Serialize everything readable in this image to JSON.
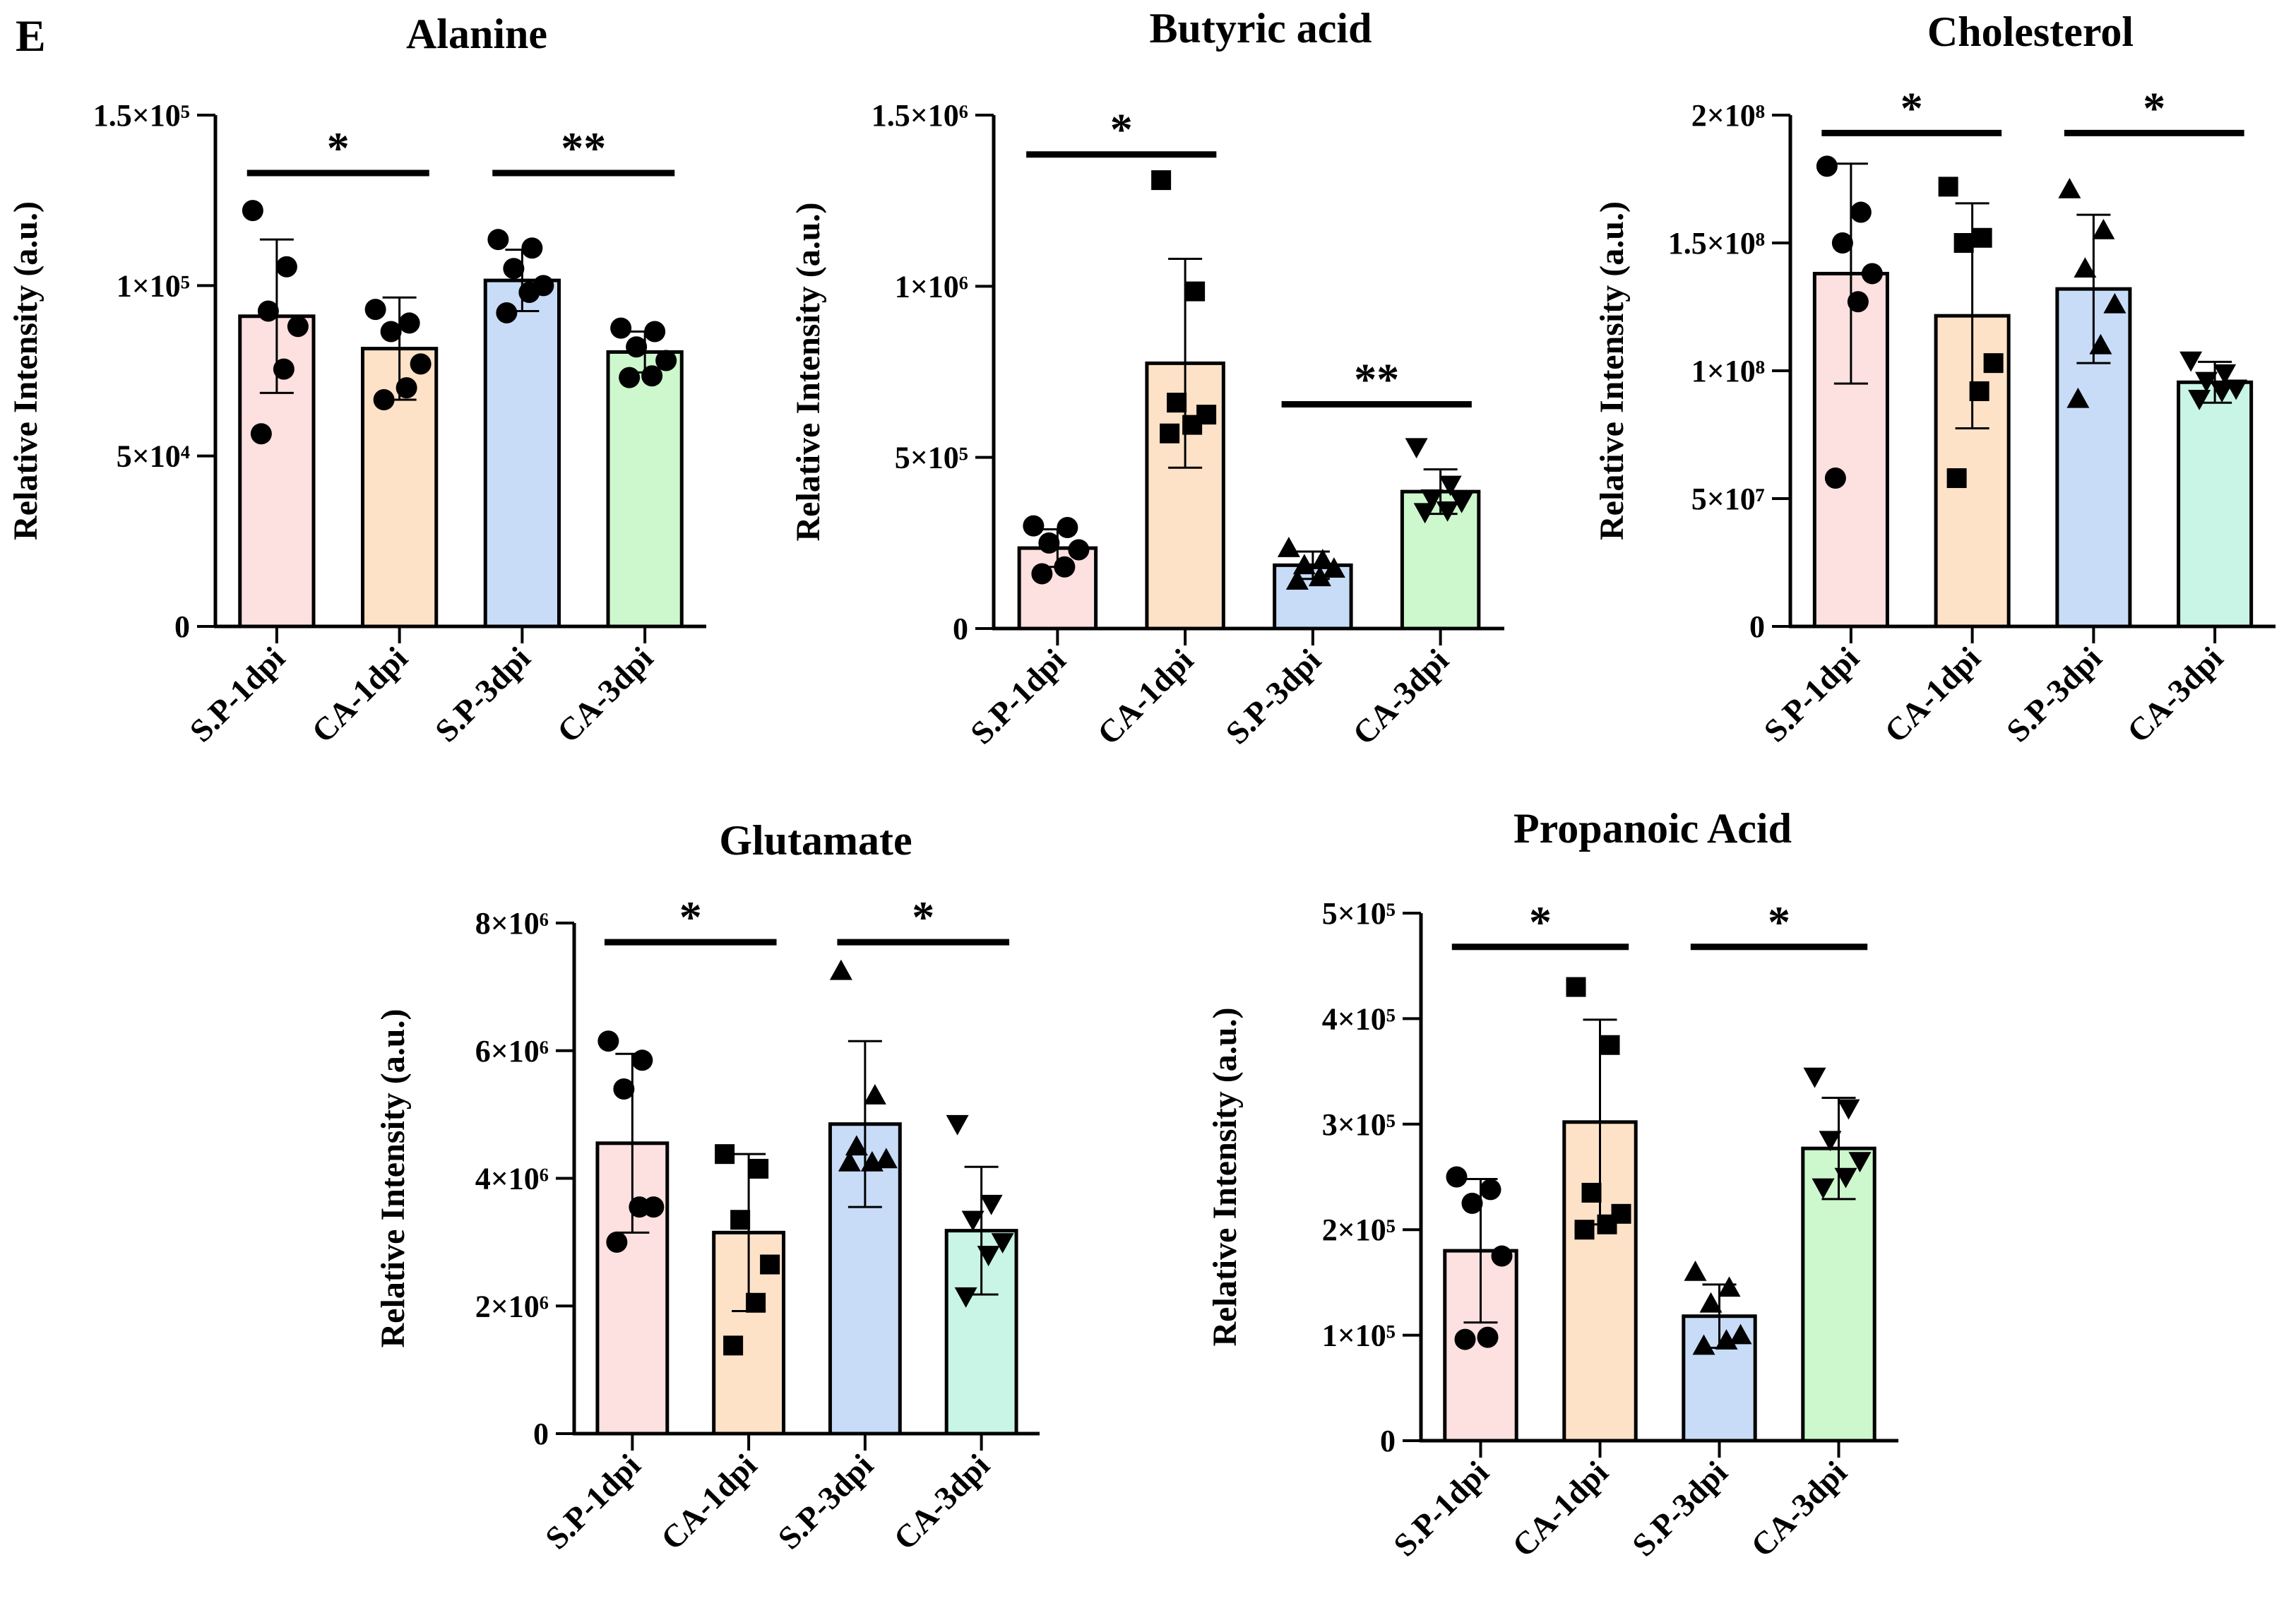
{
  "figure": {
    "panel_label": "E"
  },
  "chart_data": [
    {
      "type": "bar",
      "title": "Alanine",
      "ylabel": "Relative Intensity  (a.u.)",
      "categories": [
        "S.P-1dpi",
        "CA-1dpi",
        "S.P-3dpi",
        "CA-3dpi"
      ],
      "ylim": [
        0,
        150000
      ],
      "yticks": [
        0,
        50000,
        100000,
        150000
      ],
      "ytick_labels": [
        "0",
        "5×10⁴",
        "1×10⁵",
        "1.5×10⁵"
      ],
      "values": [
        91000,
        81500,
        101500,
        80500
      ],
      "errors": [
        22500,
        15000,
        9000,
        6000
      ],
      "points": [
        [
          122000,
          105500,
          92500,
          88000,
          75500,
          56500
        ],
        [
          93000,
          89000,
          86500,
          77000,
          70000,
          66500
        ],
        [
          113500,
          111000,
          105000,
          100000,
          98000,
          92000
        ],
        [
          87500,
          86500,
          82000,
          78000,
          73500,
          73000
        ]
      ],
      "markers": [
        "circle",
        "circle",
        "circle",
        "circle"
      ],
      "colors": [
        "#fde0e0",
        "#fde2c7",
        "#c8dcf7",
        "#cdf7cd"
      ],
      "significance": [
        {
          "from": 0,
          "to": 1,
          "label": "*",
          "y": 133000
        },
        {
          "from": 2,
          "to": 3,
          "label": "**",
          "y": 133000
        }
      ]
    },
    {
      "type": "bar",
      "title": "Butyric acid",
      "ylabel": "Relative Intensity  (a.u.)",
      "categories": [
        "S.P-1dpi",
        "CA-1dpi",
        "S.P-3dpi",
        "CA-3dpi"
      ],
      "ylim": [
        0,
        1500000
      ],
      "yticks": [
        0,
        500000,
        1000000,
        1500000
      ],
      "ytick_labels": [
        "0",
        "5×10⁵",
        "1×10⁶",
        "1.5×10⁶"
      ],
      "values": [
        235000,
        775000,
        185000,
        400000
      ],
      "errors": [
        55000,
        305000,
        40000,
        65000
      ],
      "points": [
        [
          300000,
          295000,
          250000,
          230000,
          180000,
          160000
        ],
        [
          1310000,
          985000,
          660000,
          625000,
          595000,
          570000
        ],
        [
          235000,
          200000,
          185000,
          175000,
          150000,
          140000
        ],
        [
          530000,
          420000,
          380000,
          370000,
          345000,
          340000
        ]
      ],
      "markers": [
        "circle",
        "square",
        "triangle-up",
        "triangle-down"
      ],
      "colors": [
        "#fde0e0",
        "#fde2c7",
        "#c8dcf7",
        "#cdf7cd"
      ],
      "significance": [
        {
          "from": 0,
          "to": 1,
          "label": "*",
          "y": 1385000
        },
        {
          "from": 2,
          "to": 3,
          "label": "**",
          "y": 655000
        }
      ]
    },
    {
      "type": "bar",
      "title": "Cholesterol",
      "ylabel": "Relative Intensity  (a.u.)",
      "categories": [
        "S.P-1dpi",
        "CA-1dpi",
        "S.P-3dpi",
        "CA-3dpi"
      ],
      "ylim": [
        0,
        200000000
      ],
      "yticks": [
        0,
        50000000,
        100000000,
        150000000,
        200000000
      ],
      "ytick_labels": [
        "0",
        "5×10⁷",
        "1×10⁸",
        "1.5×10⁸",
        "2×10⁸"
      ],
      "values": [
        138000000,
        121500000,
        132000000,
        95500000
      ],
      "errors": [
        43000000,
        44000000,
        29000000,
        8000000
      ],
      "points": [
        [
          180000000,
          162000000,
          150000000,
          138000000,
          127000000,
          58000000
        ],
        [
          172000000,
          152000000,
          150000000,
          103000000,
          92000000,
          58000000
        ],
        [
          171000000,
          155000000,
          140000000,
          126000000,
          110000000,
          89000000
        ],
        [
          104000000,
          99000000,
          96000000,
          93000000,
          92000000,
          89000000
        ]
      ],
      "markers": [
        "circle",
        "square",
        "triangle-up",
        "triangle-down"
      ],
      "colors": [
        "#fde0e0",
        "#fde2c7",
        "#c8dcf7",
        "#c8f5e6"
      ],
      "significance": [
        {
          "from": 0,
          "to": 1,
          "label": "*",
          "y": 193000000
        },
        {
          "from": 2,
          "to": 3,
          "label": "*",
          "y": 193000000
        }
      ]
    },
    {
      "type": "bar",
      "title": "Glutamate",
      "ylabel": "Relative Intensity  (a.u.)",
      "categories": [
        "S.P-1dpi",
        "CA-1dpi",
        "S.P-3dpi",
        "CA-3dpi"
      ],
      "ylim": [
        0,
        8000000
      ],
      "yticks": [
        0,
        2000000,
        4000000,
        6000000,
        8000000
      ],
      "ytick_labels": [
        "0",
        "2×10⁶",
        "4×10⁶",
        "6×10⁶",
        "8×10⁶"
      ],
      "values": [
        4550000,
        3150000,
        4850000,
        3180000
      ],
      "errors": [
        1400000,
        1230000,
        1300000,
        1000000
      ],
      "points": [
        [
          6150000,
          5850000,
          5400000,
          3550000,
          3550000,
          3000000
        ],
        [
          4380000,
          4150000,
          3350000,
          2650000,
          2050000,
          1380000
        ],
        [
          7250000,
          5300000,
          4500000,
          4300000,
          4250000,
          4250000
        ],
        [
          4850000,
          3600000,
          3350000,
          3000000,
          2800000,
          2150000
        ]
      ],
      "markers": [
        "circle",
        "square",
        "triangle-up",
        "triangle-down"
      ],
      "colors": [
        "#fde0e0",
        "#fde2c7",
        "#c8dcf7",
        "#c8f5e6"
      ],
      "significance": [
        {
          "from": 0,
          "to": 1,
          "label": "*",
          "y": 7700000
        },
        {
          "from": 2,
          "to": 3,
          "label": "*",
          "y": 7700000
        }
      ]
    },
    {
      "type": "bar",
      "title": "Propanoic Acid",
      "ylabel": "Relative Intensity  (a.u.)",
      "categories": [
        "S.P-1dpi",
        "CA-1dpi",
        "S.P-3dpi",
        "CA-3dpi"
      ],
      "ylim": [
        0,
        500000
      ],
      "yticks": [
        0,
        100000,
        200000,
        300000,
        400000,
        500000
      ],
      "ytick_labels": [
        "0",
        "1×10⁵",
        "2×10⁵",
        "3×10⁵",
        "4×10⁵",
        "5×10⁵"
      ],
      "values": [
        180000,
        302000,
        118000,
        277000
      ],
      "errors": [
        68000,
        97000,
        30000,
        48000
      ],
      "points": [
        [
          250000,
          238000,
          225000,
          175000,
          98000,
          96000
        ],
        [
          430000,
          375000,
          235000,
          215000,
          205000,
          200000
        ],
        [
          160000,
          145000,
          130000,
          100000,
          95000,
          90000
        ],
        [
          345000,
          315000,
          285000,
          265000,
          250000,
          240000
        ]
      ],
      "markers": [
        "circle",
        "square",
        "triangle-up",
        "triangle-down"
      ],
      "colors": [
        "#fde0e0",
        "#fde2c7",
        "#c8dcf7",
        "#cdf7cd"
      ],
      "significance": [
        {
          "from": 0,
          "to": 1,
          "label": "*",
          "y": 468000
        },
        {
          "from": 2,
          "to": 3,
          "label": "*",
          "y": 468000
        }
      ]
    }
  ]
}
